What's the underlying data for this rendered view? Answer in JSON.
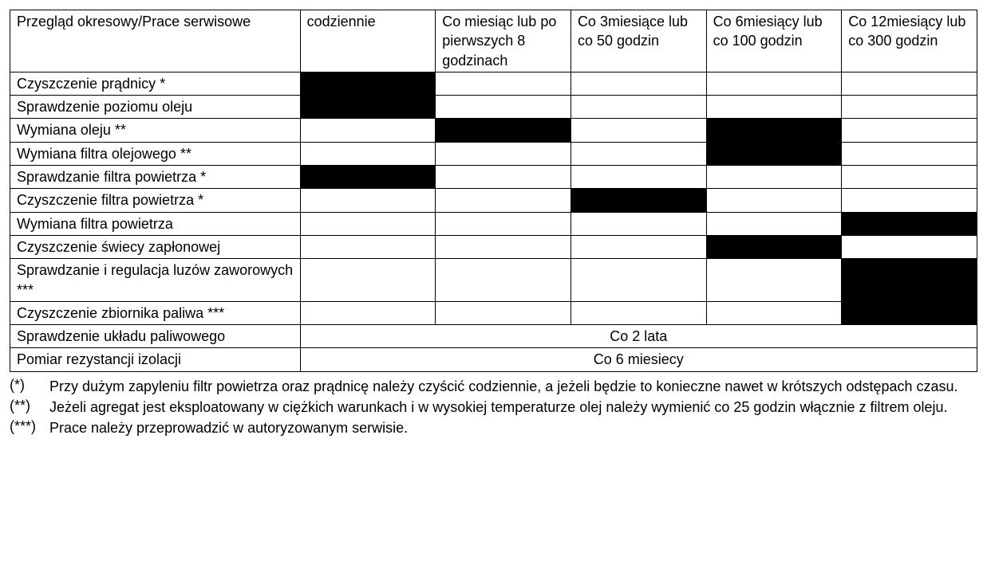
{
  "table": {
    "type": "table",
    "columns": [
      {
        "key": "task",
        "label": "Przegląd okresowy/Prace serwisowe",
        "width_pct": 30,
        "align": "left"
      },
      {
        "key": "c1",
        "label": "codziennie",
        "width_pct": 14,
        "align": "left"
      },
      {
        "key": "c2",
        "label": "Co miesiąc lub po pierwszych 8 godzinach",
        "width_pct": 14,
        "align": "left"
      },
      {
        "key": "c3",
        "label": "Co 3miesiące lub co 50 godzin",
        "width_pct": 14,
        "align": "left"
      },
      {
        "key": "c4",
        "label": "Co 6miesiący lub co 100 godzin",
        "width_pct": 14,
        "align": "left"
      },
      {
        "key": "c5",
        "label": "Co 12miesiący lub co 300 godzin",
        "width_pct": 14,
        "align": "left"
      }
    ],
    "fill_color": "#000000",
    "border_color": "#000000",
    "background_color": "#ffffff",
    "font_size_pt": 13,
    "rows": [
      {
        "task": "Czyszczenie prądnicy *",
        "marks": [
          true,
          false,
          false,
          false,
          false
        ]
      },
      {
        "task": "Sprawdzenie poziomu oleju",
        "marks": [
          true,
          false,
          false,
          false,
          false
        ]
      },
      {
        "task": "Wymiana oleju **",
        "marks": [
          false,
          true,
          false,
          true,
          false
        ]
      },
      {
        "task": "Wymiana filtra olejowego **",
        "marks": [
          false,
          false,
          false,
          true,
          false
        ]
      },
      {
        "task": "Sprawdzanie filtra powietrza *",
        "marks": [
          true,
          false,
          false,
          false,
          false
        ]
      },
      {
        "task": "Czyszczenie filtra powietrza *",
        "marks": [
          false,
          false,
          true,
          false,
          false
        ]
      },
      {
        "task": "Wymiana filtra powietrza",
        "marks": [
          false,
          false,
          false,
          false,
          true
        ]
      },
      {
        "task": "Czyszczenie świecy zapłonowej",
        "marks": [
          false,
          false,
          false,
          true,
          false
        ]
      },
      {
        "task": "Sprawdzanie i regulacja luzów zaworowych ***",
        "marks": [
          false,
          false,
          false,
          false,
          true
        ]
      },
      {
        "task": "Czyszczenie zbiornika paliwa ***",
        "marks": [
          false,
          false,
          false,
          false,
          true
        ]
      },
      {
        "task": "Sprawdzenie układu paliwowego",
        "spanned_text": "Co 2 lata"
      },
      {
        "task": "Pomiar rezystancji izolacji",
        "spanned_text": "Co 6 miesiecy"
      }
    ]
  },
  "footnotes": [
    {
      "marker": "(*)",
      "text": "Przy dużym zapyleniu filtr powietrza oraz prądnicę należy czyścić codziennie, a jeżeli będzie to konieczne nawet w krótszych odstępach czasu."
    },
    {
      "marker": "(**)",
      "text": "Jeżeli agregat jest eksploatowany w ciężkich warunkach i w wysokiej temperaturze olej należy wymienić co 25 godzin włącznie z filtrem oleju."
    },
    {
      "marker": "(***)",
      "text": "Prace należy przeprowadzić w autoryzowanym serwisie."
    }
  ]
}
